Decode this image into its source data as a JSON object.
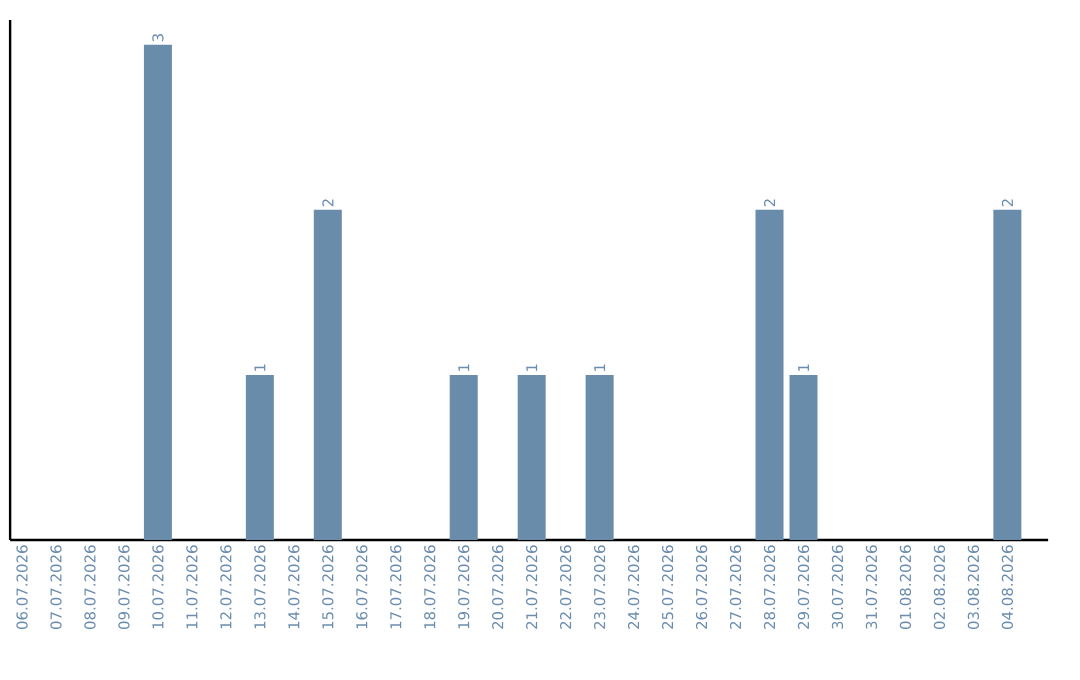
{
  "chart_data": {
    "type": "bar",
    "categories": [
      "06.07.2026",
      "07.07.2026",
      "08.07.2026",
      "09.07.2026",
      "10.07.2026",
      "11.07.2026",
      "12.07.2026",
      "13.07.2026",
      "14.07.2026",
      "15.07.2026",
      "16.07.2026",
      "17.07.2026",
      "18.07.2026",
      "19.07.2026",
      "20.07.2026",
      "21.07.2026",
      "22.07.2026",
      "23.07.2026",
      "24.07.2026",
      "25.07.2026",
      "26.07.2026",
      "27.07.2026",
      "28.07.2026",
      "29.07.2026",
      "30.07.2026",
      "31.07.2026",
      "01.08.2026",
      "02.08.2026",
      "03.08.2026",
      "04.08.2026"
    ],
    "values": [
      0,
      0,
      0,
      0,
      3,
      0,
      0,
      1,
      0,
      2,
      0,
      0,
      0,
      1,
      0,
      1,
      0,
      1,
      0,
      0,
      0,
      0,
      2,
      1,
      0,
      0,
      0,
      0,
      0,
      2
    ],
    "value_labels": [
      null,
      null,
      null,
      null,
      "3",
      null,
      null,
      "1",
      null,
      "2",
      null,
      null,
      null,
      "1",
      null,
      "1",
      null,
      "1",
      null,
      null,
      null,
      null,
      "2",
      "1",
      null,
      null,
      null,
      null,
      null,
      "2"
    ],
    "color": "#6a8cab"
  }
}
